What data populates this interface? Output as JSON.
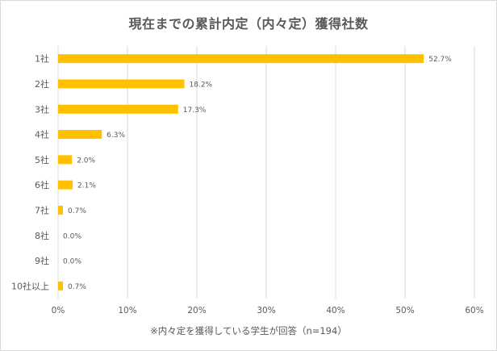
{
  "chart_data": {
    "type": "bar",
    "orientation": "horizontal",
    "title": "現在までの累計内定（内々定）獲得社数",
    "note": "※内々定を獲得している学生が回答（n=194）",
    "categories": [
      "1社",
      "2社",
      "3社",
      "4社",
      "5社",
      "6社",
      "7社",
      "8社",
      "9社",
      "10社以上"
    ],
    "values": [
      52.7,
      18.2,
      17.3,
      6.3,
      2.0,
      2.1,
      0.7,
      0.0,
      0.0,
      0.7
    ],
    "data_labels": [
      "52.7%",
      "18.2%",
      "17.3%",
      "6.3%",
      "2.0%",
      "2.1%",
      "0.7%",
      "0.0%",
      "0.0%",
      "0.7%"
    ],
    "xlim": [
      0,
      60
    ],
    "x_ticks": [
      "0%",
      "10%",
      "20%",
      "30%",
      "40%",
      "50%",
      "60%"
    ],
    "bar_color": "#FFC000",
    "gridlines": true
  }
}
